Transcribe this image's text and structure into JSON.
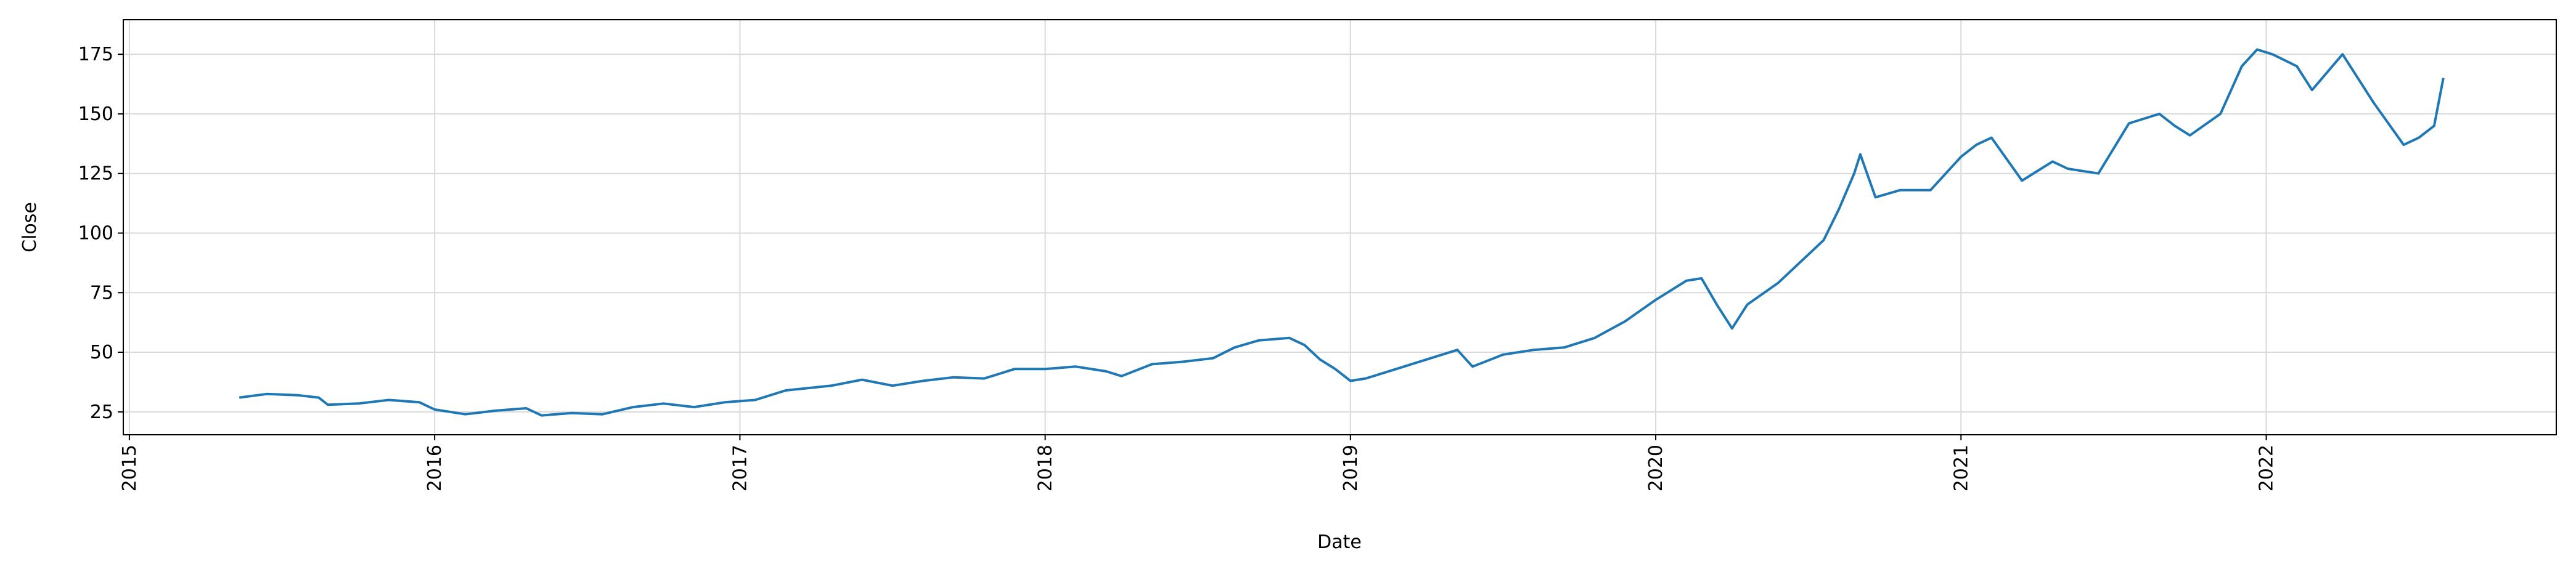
{
  "chart_data": {
    "type": "line",
    "x_label": "Date",
    "y_label": "Close",
    "x": [
      2015.36,
      2015.45,
      2015.55,
      2015.62,
      2015.65,
      2015.75,
      2015.85,
      2015.95,
      2016.0,
      2016.1,
      2016.2,
      2016.3,
      2016.35,
      2016.45,
      2016.55,
      2016.65,
      2016.75,
      2016.85,
      2016.95,
      2017.05,
      2017.15,
      2017.3,
      2017.4,
      2017.5,
      2017.6,
      2017.7,
      2017.8,
      2017.9,
      2018.0,
      2018.1,
      2018.2,
      2018.25,
      2018.35,
      2018.45,
      2018.55,
      2018.62,
      2018.7,
      2018.8,
      2018.85,
      2018.9,
      2018.95,
      2019.0,
      2019.05,
      2019.15,
      2019.25,
      2019.35,
      2019.4,
      2019.5,
      2019.6,
      2019.7,
      2019.8,
      2019.9,
      2020.0,
      2020.1,
      2020.15,
      2020.2,
      2020.25,
      2020.3,
      2020.4,
      2020.5,
      2020.55,
      2020.6,
      2020.65,
      2020.67,
      2020.72,
      2020.8,
      2020.9,
      2021.0,
      2021.05,
      2021.1,
      2021.2,
      2021.3,
      2021.35,
      2021.45,
      2021.55,
      2021.65,
      2021.7,
      2021.75,
      2021.85,
      2021.92,
      2021.97,
      2022.02,
      2022.1,
      2022.15,
      2022.25,
      2022.3,
      2022.35,
      2022.45,
      2022.5,
      2022.55,
      2022.58
    ],
    "series": [
      {
        "name": "Close",
        "color": "#1f77b4",
        "values": [
          31,
          32.5,
          32,
          31,
          28,
          28.5,
          30,
          29,
          26,
          24,
          25.5,
          26.5,
          23.5,
          24.5,
          24,
          27,
          28.5,
          27,
          29,
          30,
          34,
          36,
          38.5,
          36,
          38,
          39.5,
          39,
          43,
          43,
          44,
          42,
          40,
          45,
          46,
          47.5,
          52,
          55,
          56,
          53,
          47,
          43,
          38,
          39,
          43,
          47,
          51,
          44,
          49,
          51,
          52,
          56,
          63,
          72,
          80,
          81,
          70,
          60,
          70,
          79,
          91,
          97,
          110,
          125,
          133,
          115,
          118,
          118,
          132,
          137,
          140,
          122,
          130,
          127,
          125,
          146,
          150,
          145,
          141,
          150,
          170,
          177,
          175,
          170,
          160,
          175,
          165,
          155,
          137,
          140,
          145,
          165
        ]
      }
    ],
    "xlim": [
      2014.98,
      2022.95
    ],
    "xticks": [
      2015,
      2016,
      2017,
      2018,
      2019,
      2020,
      2021,
      2022
    ],
    "ylim": [
      15.4,
      189.5
    ],
    "yticks": [
      25,
      50,
      75,
      100,
      125,
      150,
      175
    ],
    "grid": true
  }
}
